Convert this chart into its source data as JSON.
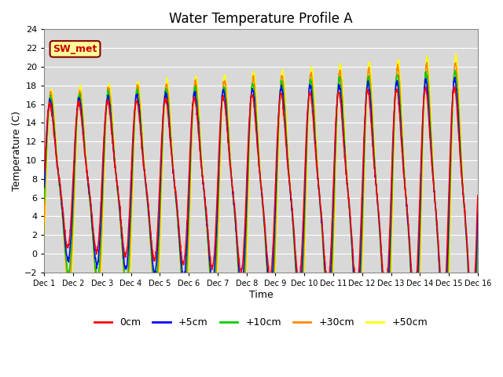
{
  "title": "Water Temperature Profile A",
  "xlabel": "Time",
  "ylabel": "Temperature (C)",
  "ylim": [
    -2,
    24
  ],
  "xlim": [
    0,
    15
  ],
  "yticks": [
    -2,
    0,
    2,
    4,
    6,
    8,
    10,
    12,
    14,
    16,
    18,
    20,
    22,
    24
  ],
  "xtick_labels": [
    "Dec 1",
    "Dec 2",
    "Dec 3",
    "Dec 4",
    "Dec 5",
    "Dec 6",
    "Dec 7",
    "Dec 8",
    "Dec 9",
    "Dec 10",
    "Dec 11",
    "Dec 12",
    "Dec 13",
    "Dec 14",
    "Dec 15",
    "Dec 16"
  ],
  "xtick_positions": [
    0,
    1,
    2,
    3,
    4,
    5,
    6,
    7,
    8,
    9,
    10,
    11,
    12,
    13,
    14,
    15
  ],
  "line_colors": [
    "#ff0000",
    "#0000ff",
    "#00cc00",
    "#ff8800",
    "#ffff00"
  ],
  "line_labels": [
    "0cm",
    "+5cm",
    "+10cm",
    "+30cm",
    "+50cm"
  ],
  "annotation_text": "SW_met",
  "annotation_box_color": "#ffff99",
  "annotation_border_color": "#880000",
  "bg_color": "#d8d8d8",
  "grid_color": "#ffffff",
  "title_fontsize": 12,
  "axis_fontsize": 9,
  "legend_fontsize": 9,
  "n_points": 2000
}
